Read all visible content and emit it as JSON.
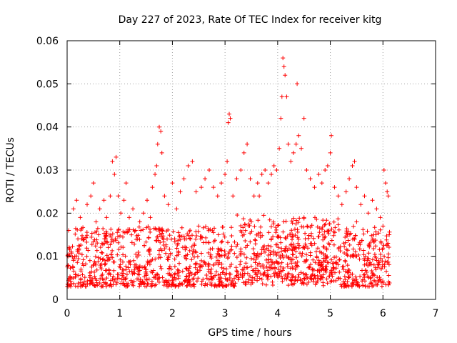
{
  "chart_data": {
    "type": "scatter",
    "title": "Day 227 of 2023, Rate Of TEC Index for receiver kitg",
    "xlabel": "GPS time / hours",
    "ylabel": "ROTI / TECUs",
    "xlim": [
      0,
      7
    ],
    "ylim": [
      0,
      0.06
    ],
    "x_ticks": [
      0,
      1,
      2,
      3,
      4,
      5,
      6,
      7
    ],
    "x_tick_labels": [
      "0",
      "1",
      "2",
      "3",
      "4",
      "5",
      "6",
      "7"
    ],
    "y_ticks": [
      0,
      0.01,
      0.02,
      0.03,
      0.04,
      0.05,
      0.06
    ],
    "y_tick_labels": [
      "0",
      "0.01",
      "0.02",
      "0.03",
      "0.04",
      "0.05",
      "0.06"
    ],
    "grid": true,
    "marker": "+",
    "marker_color": "#ff0000",
    "x_data_range": [
      0,
      6.13
    ],
    "baseline_band": [
      0.003,
      0.017
    ],
    "series": [
      {
        "name": "ROTI",
        "color": "#ff0000",
        "points": [
          [
            0.03,
            0.016
          ],
          [
            0.08,
            0.011
          ],
          [
            0.12,
            0.021
          ],
          [
            0.18,
            0.023
          ],
          [
            0.25,
            0.019
          ],
          [
            0.3,
            0.014
          ],
          [
            0.38,
            0.022
          ],
          [
            0.45,
            0.024
          ],
          [
            0.5,
            0.027
          ],
          [
            0.55,
            0.018
          ],
          [
            0.62,
            0.021
          ],
          [
            0.7,
            0.023
          ],
          [
            0.75,
            0.019
          ],
          [
            0.82,
            0.024
          ],
          [
            0.86,
            0.032
          ],
          [
            0.9,
            0.029
          ],
          [
            0.93,
            0.033
          ],
          [
            0.97,
            0.024
          ],
          [
            1.02,
            0.02
          ],
          [
            1.08,
            0.023
          ],
          [
            1.12,
            0.027
          ],
          [
            1.18,
            0.019
          ],
          [
            1.25,
            0.021
          ],
          [
            1.3,
            0.016
          ],
          [
            1.38,
            0.018
          ],
          [
            1.45,
            0.02
          ],
          [
            1.52,
            0.023
          ],
          [
            1.58,
            0.019
          ],
          [
            1.62,
            0.026
          ],
          [
            1.67,
            0.029
          ],
          [
            1.7,
            0.031
          ],
          [
            1.72,
            0.036
          ],
          [
            1.75,
            0.04
          ],
          [
            1.78,
            0.039
          ],
          [
            1.8,
            0.034
          ],
          [
            1.85,
            0.024
          ],
          [
            1.92,
            0.022
          ],
          [
            2.0,
            0.027
          ],
          [
            2.08,
            0.021
          ],
          [
            2.15,
            0.025
          ],
          [
            2.22,
            0.028
          ],
          [
            2.3,
            0.031
          ],
          [
            2.38,
            0.032
          ],
          [
            2.45,
            0.025
          ],
          [
            2.55,
            0.026
          ],
          [
            2.62,
            0.028
          ],
          [
            2.7,
            0.03
          ],
          [
            2.78,
            0.026
          ],
          [
            2.86,
            0.024
          ],
          [
            2.93,
            0.027
          ],
          [
            3.0,
            0.029
          ],
          [
            3.04,
            0.032
          ],
          [
            3.06,
            0.041
          ],
          [
            3.08,
            0.043
          ],
          [
            3.1,
            0.042
          ],
          [
            3.15,
            0.024
          ],
          [
            3.22,
            0.028
          ],
          [
            3.3,
            0.03
          ],
          [
            3.36,
            0.034
          ],
          [
            3.42,
            0.036
          ],
          [
            3.48,
            0.028
          ],
          [
            3.55,
            0.024
          ],
          [
            3.62,
            0.027
          ],
          [
            3.7,
            0.029
          ],
          [
            3.76,
            0.03
          ],
          [
            3.82,
            0.027
          ],
          [
            3.88,
            0.029
          ],
          [
            3.93,
            0.031
          ],
          [
            3.98,
            0.03
          ],
          [
            4.03,
            0.035
          ],
          [
            4.06,
            0.042
          ],
          [
            4.08,
            0.047
          ],
          [
            4.1,
            0.056
          ],
          [
            4.12,
            0.054
          ],
          [
            4.14,
            0.052
          ],
          [
            4.17,
            0.047
          ],
          [
            4.2,
            0.036
          ],
          [
            4.25,
            0.032
          ],
          [
            4.3,
            0.034
          ],
          [
            4.35,
            0.036
          ],
          [
            4.37,
            0.05
          ],
          [
            4.4,
            0.038
          ],
          [
            4.45,
            0.035
          ],
          [
            4.5,
            0.042
          ],
          [
            4.55,
            0.03
          ],
          [
            4.62,
            0.028
          ],
          [
            4.7,
            0.026
          ],
          [
            4.78,
            0.029
          ],
          [
            4.84,
            0.027
          ],
          [
            4.9,
            0.03
          ],
          [
            4.95,
            0.031
          ],
          [
            5.0,
            0.034
          ],
          [
            5.02,
            0.038
          ],
          [
            5.08,
            0.026
          ],
          [
            5.15,
            0.024
          ],
          [
            5.22,
            0.022
          ],
          [
            5.3,
            0.025
          ],
          [
            5.36,
            0.028
          ],
          [
            5.42,
            0.031
          ],
          [
            5.46,
            0.032
          ],
          [
            5.5,
            0.026
          ],
          [
            5.58,
            0.022
          ],
          [
            5.65,
            0.024
          ],
          [
            5.72,
            0.02
          ],
          [
            5.8,
            0.023
          ],
          [
            5.88,
            0.021
          ],
          [
            5.95,
            0.019
          ],
          [
            6.02,
            0.03
          ],
          [
            6.05,
            0.027
          ],
          [
            6.08,
            0.025
          ],
          [
            6.1,
            0.024
          ],
          [
            6.12,
            0.015
          ],
          [
            0.6,
            0.015
          ],
          [
            1.4,
            0.016
          ],
          [
            2.5,
            0.017
          ],
          [
            3.5,
            0.018
          ],
          [
            4.5,
            0.019
          ],
          [
            5.5,
            0.018
          ],
          [
            6.0,
            0.017
          ],
          [
            3.65,
            0.024
          ]
        ]
      }
    ]
  }
}
